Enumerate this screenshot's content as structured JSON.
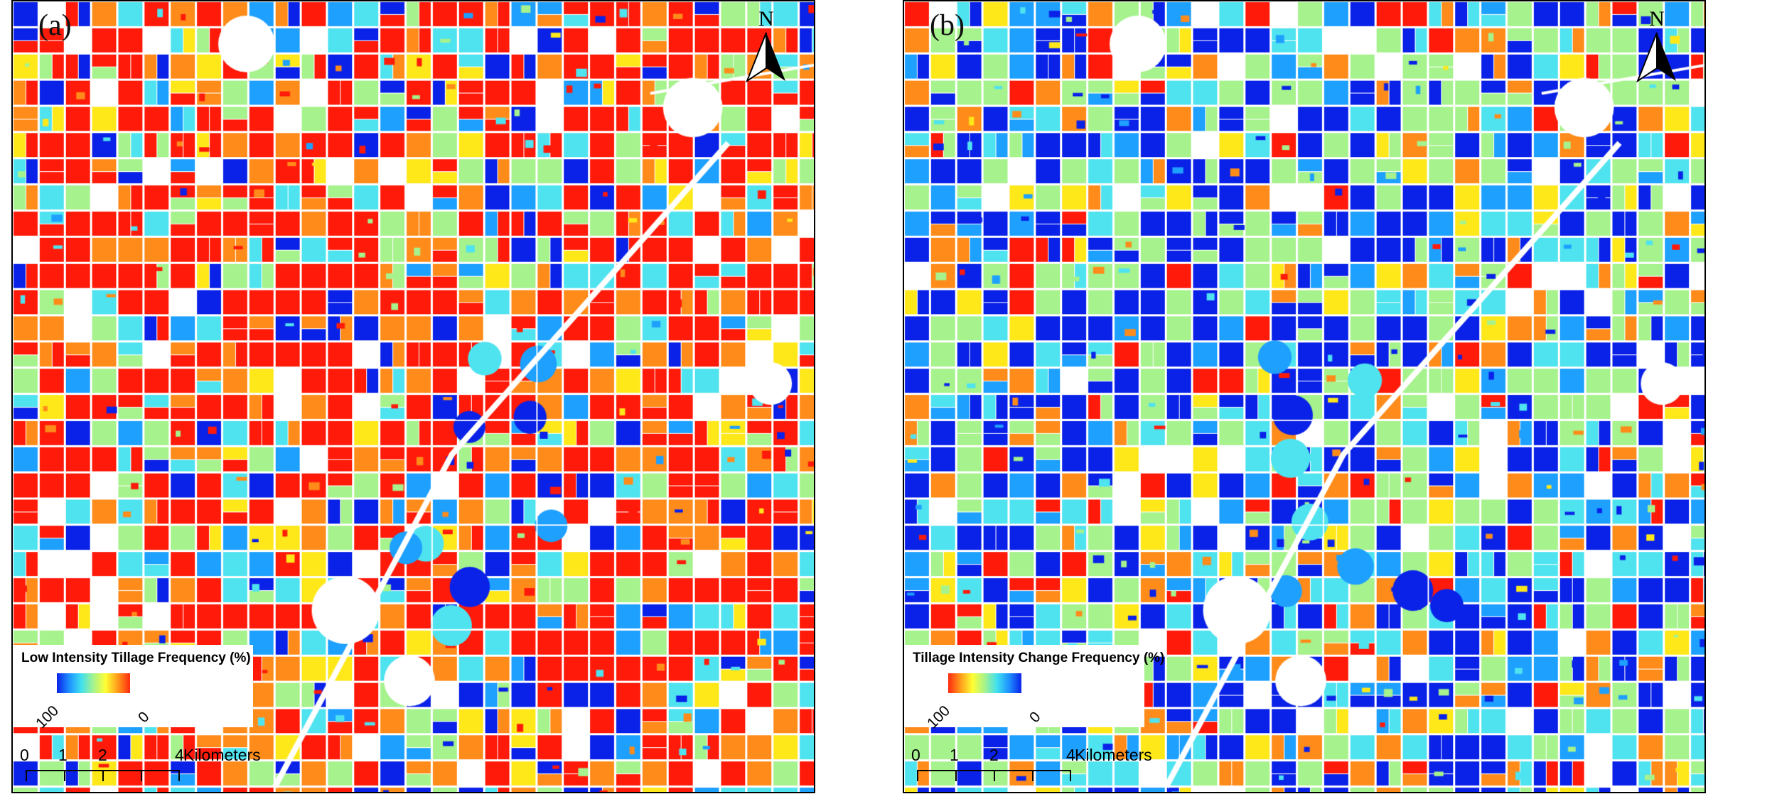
{
  "panels": [
    {
      "label": "(a)",
      "north_label": "N",
      "legend_title": "Low Intensity Tillage Frequency (%)",
      "legend_left_label": "100",
      "legend_right_label": "0",
      "legend_colors": [
        "#0a22e8",
        "#1e90ff",
        "#40e0f0",
        "#a6f28c",
        "#ffff33",
        "#ff9a1a",
        "#ff2a10"
      ],
      "map_theme": "red-dominant"
    },
    {
      "label": "(b)",
      "north_label": "N",
      "legend_title": "Tillage Intensity Change Frequency (%)",
      "legend_left_label": "100",
      "legend_right_label": "0",
      "legend_colors": [
        "#ff2a10",
        "#ff9a1a",
        "#ffff33",
        "#a6f28c",
        "#40e0f0",
        "#1e90ff",
        "#0a22e8"
      ],
      "map_theme": "blue-dominant"
    }
  ],
  "scalebar": {
    "ticks": [
      "0",
      "1",
      "2",
      "4"
    ],
    "unit": "Kilometers"
  },
  "colors": {
    "red": "#ff1a0a",
    "orange": "#ff8c1a",
    "yellow": "#ffe81a",
    "light_green": "#a6f28c",
    "cyan": "#4fe3f0",
    "light_blue": "#1ea0ff",
    "blue": "#0a22e8",
    "gap": "#ffffff"
  }
}
